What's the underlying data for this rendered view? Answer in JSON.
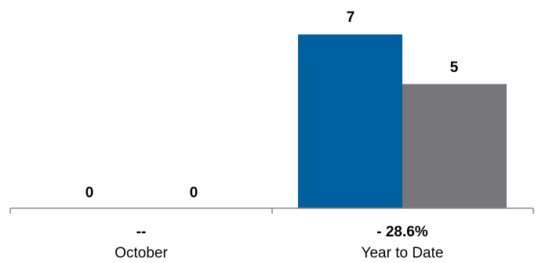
{
  "chart_data": {
    "type": "bar",
    "categories": [
      "October",
      "Year to Date"
    ],
    "change_labels": [
      "--",
      "- 28.6%"
    ],
    "series": [
      {
        "values": [
          0,
          7
        ],
        "color": "#005f9e"
      },
      {
        "values": [
          0,
          5
        ],
        "color": "#77777b"
      }
    ],
    "data_labels": [
      [
        "0",
        "7"
      ],
      [
        "0",
        "5"
      ]
    ],
    "ylim": [
      0,
      8
    ],
    "grid": false,
    "legend": "none",
    "axis_color": "#888888"
  }
}
